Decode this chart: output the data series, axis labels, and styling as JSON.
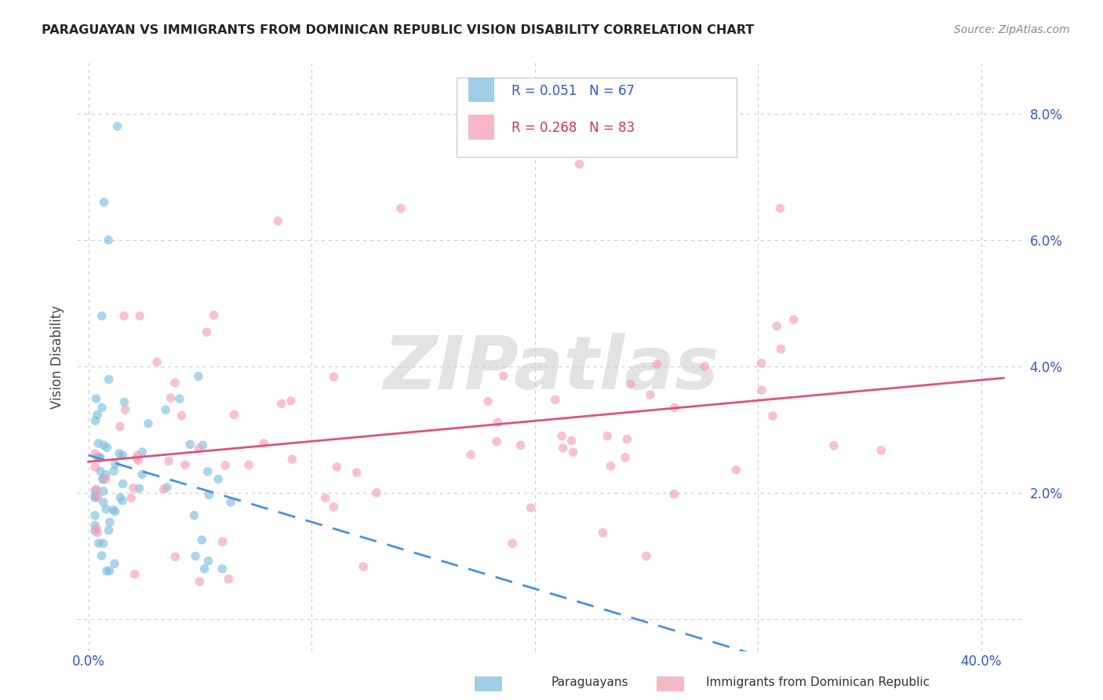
{
  "title": "PARAGUAYAN VS IMMIGRANTS FROM DOMINICAN REPUBLIC VISION DISABILITY CORRELATION CHART",
  "source": "Source: ZipAtlas.com",
  "ylabel": "Vision Disability",
  "xlim": [
    -0.005,
    0.42
  ],
  "ylim": [
    -0.005,
    0.088
  ],
  "blue_R": 0.051,
  "blue_N": 67,
  "pink_R": 0.268,
  "pink_N": 83,
  "blue_color": "#7fbfdf",
  "pink_color": "#f4a0b8",
  "blue_line_color": "#4a90d9",
  "pink_line_color": "#e05080",
  "legend_blue_label": "Paraguayans",
  "legend_pink_label": "Immigrants from Dominican Republic",
  "watermark_text": "ZIPatlas",
  "background_color": "#ffffff",
  "title_color": "#222222",
  "axis_label_color": "#3355cc",
  "grid_color": "#cccccc",
  "ytick_positions": [
    0.0,
    0.02,
    0.04,
    0.06,
    0.08
  ],
  "ytick_labels": [
    "",
    "2.0%",
    "4.0%",
    "6.0%",
    "8.0%"
  ],
  "xtick_positions": [
    0.0,
    0.1,
    0.2,
    0.3,
    0.4
  ],
  "xtick_labels": [
    "0.0%",
    "",
    "",
    "",
    "40.0%"
  ]
}
